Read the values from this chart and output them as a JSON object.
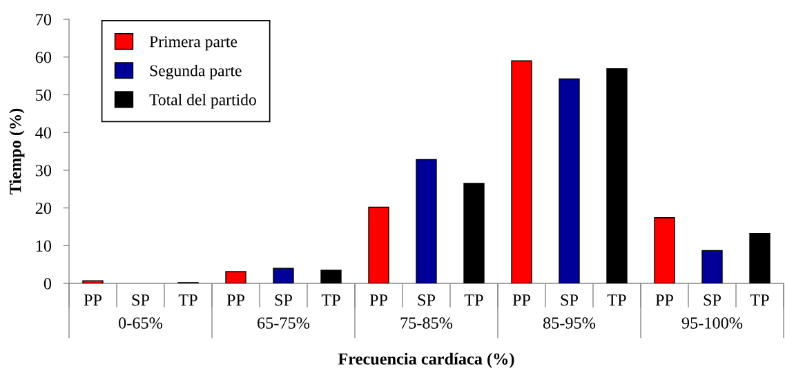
{
  "chart_data": {
    "type": "bar",
    "xlabel": "Frecuencia cardíaca (%)",
    "ylabel": "Tiempo (%)",
    "categories": [
      "PP",
      "SP",
      "TP",
      "PP",
      "SP",
      "TP",
      "PP",
      "SP",
      "TP",
      "PP",
      "SP",
      "TP",
      "PP",
      "SP",
      "TP"
    ],
    "series": [
      {
        "name": "Primera parte",
        "color": "#ff0000",
        "values": [
          0.7,
          null,
          null,
          3.1,
          null,
          null,
          20.2,
          null,
          null,
          59.0,
          null,
          null,
          17.4,
          null,
          null
        ]
      },
      {
        "name": "Segunda parte",
        "color": "#000099",
        "values": [
          null,
          null,
          null,
          null,
          4.0,
          null,
          null,
          32.8,
          null,
          null,
          54.2,
          null,
          null,
          8.7,
          null
        ]
      },
      {
        "name": "Total del partido",
        "color": "#000000",
        "values": [
          null,
          null,
          0.2,
          null,
          null,
          3.5,
          null,
          null,
          26.5,
          null,
          null,
          56.9,
          null,
          null,
          13.2
        ]
      }
    ],
    "annotations": [
      "0-65%",
      "65-75%",
      "75-85%",
      "85-95%",
      "95-100%"
    ],
    "ylim": [
      0,
      70
    ],
    "yticks": [
      0,
      10,
      20,
      30,
      40,
      50,
      60,
      70
    ],
    "grid": false,
    "legend": "top left"
  }
}
